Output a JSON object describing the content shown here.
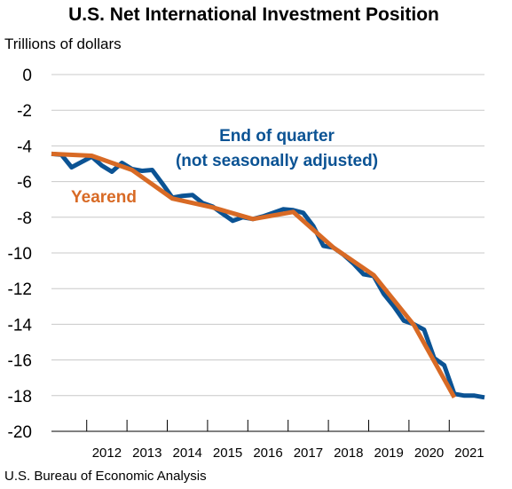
{
  "chart_data": {
    "type": "line",
    "title": "U.S. Net International Investment Position",
    "ylabel": "Trillions of dollars",
    "xlabel": "",
    "ylim": [
      -20,
      0
    ],
    "yticks": [
      0,
      -2,
      -4,
      -6,
      -8,
      -10,
      -12,
      -14,
      -16,
      -18,
      -20
    ],
    "xlim": [
      2011,
      2021.75
    ],
    "xtick_labels": [
      "2012",
      "2013",
      "2014",
      "2015",
      "2016",
      "2017",
      "2018",
      "2019",
      "2020",
      "2021"
    ],
    "grid": true,
    "source": "U.S. Bureau of Economic Analysis",
    "annotations": {
      "quarter_line1": "End of quarter",
      "quarter_line2": "(not seasonally adjusted)",
      "yearend": "Yearend"
    },
    "colors": {
      "quarter": "#0b5394",
      "yearend": "#d86a25"
    },
    "series": [
      {
        "name": "End of quarter (not seasonally adjusted)",
        "color": "#0b5394",
        "x": [
          2011.0,
          2011.25,
          2011.5,
          2011.75,
          2012.0,
          2012.25,
          2012.5,
          2012.75,
          2013.0,
          2013.25,
          2013.5,
          2013.75,
          2014.0,
          2014.25,
          2014.5,
          2014.75,
          2015.0,
          2015.25,
          2015.5,
          2015.75,
          2016.0,
          2016.25,
          2016.5,
          2016.75,
          2017.0,
          2017.25,
          2017.5,
          2017.75,
          2018.0,
          2018.25,
          2018.5,
          2018.75,
          2019.0,
          2019.25,
          2019.5,
          2019.75,
          2020.0,
          2020.25,
          2020.5,
          2020.75,
          2021.0,
          2021.25,
          2021.5,
          2021.75
        ],
        "values": [
          -4.45,
          -4.5,
          -5.2,
          -4.9,
          -4.6,
          -5.1,
          -5.45,
          -4.95,
          -5.3,
          -5.4,
          -5.35,
          -6.1,
          -6.9,
          -6.8,
          -6.75,
          -7.2,
          -7.4,
          -7.8,
          -8.2,
          -8.0,
          -8.1,
          -7.95,
          -7.75,
          -7.55,
          -7.6,
          -7.75,
          -8.5,
          -9.6,
          -9.7,
          -10.1,
          -10.6,
          -11.2,
          -11.3,
          -12.3,
          -13.0,
          -13.8,
          -14.0,
          -14.3,
          -15.9,
          -16.3,
          -17.9,
          -18.0,
          -18.0,
          -18.1
        ],
        "x_end_override": null
      },
      {
        "name": "Yearend",
        "color": "#d86a25",
        "x": [
          2011.0,
          2012.0,
          2013.0,
          2014.0,
          2015.0,
          2016.0,
          2017.0,
          2018.0,
          2019.0,
          2020.0,
          2021.0
        ],
        "values": [
          -4.45,
          -4.55,
          -5.35,
          -6.95,
          -7.45,
          -8.1,
          -7.7,
          -9.7,
          -11.25,
          -14.05,
          -18.1
        ]
      }
    ]
  }
}
